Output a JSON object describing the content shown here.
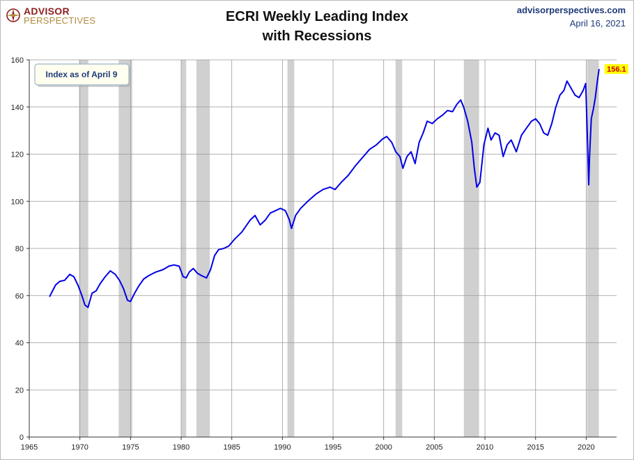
{
  "header": {
    "logo_line1": "ADVISOR",
    "logo_line2": "PERSPECTIVES",
    "title_line1": "ECRI Weekly Leading Index",
    "title_line2": "with Recessions",
    "site": "advisorperspectives.com",
    "date": "April 16, 2021"
  },
  "chart_data": {
    "type": "line",
    "title": "ECRI Weekly Leading Index with Recessions",
    "xlabel": "",
    "ylabel": "",
    "xlim": [
      1965,
      2023
    ],
    "ylim": [
      0,
      160
    ],
    "x_ticks": [
      1965,
      1970,
      1975,
      1980,
      1985,
      1990,
      1995,
      2000,
      2005,
      2010,
      2015,
      2020
    ],
    "y_ticks": [
      0,
      20,
      40,
      60,
      80,
      100,
      120,
      140,
      160
    ],
    "grid": true,
    "annotation_box": "Index as of April 9",
    "last_value_label": "156.1",
    "series_color": "#0000e6",
    "recession_color": "#d0d0d0",
    "recessions": [
      [
        1969.92,
        1970.83
      ],
      [
        1973.83,
        1975.17
      ],
      [
        1980.0,
        1980.5
      ],
      [
        1981.5,
        1982.83
      ],
      [
        1990.5,
        1991.17
      ],
      [
        2001.17,
        2001.83
      ],
      [
        2007.92,
        2009.42
      ],
      [
        2020.08,
        2021.25
      ]
    ],
    "series": [
      {
        "x": [
          1967.0,
          1967.3,
          1967.6,
          1968.0,
          1968.5,
          1969.0,
          1969.4,
          1969.8,
          1970.2,
          1970.5,
          1970.8,
          1971.2,
          1971.6,
          1972.0,
          1972.5,
          1973.0,
          1973.5,
          1973.9,
          1974.3,
          1974.7,
          1975.0,
          1975.4,
          1975.8,
          1976.3,
          1976.8,
          1977.5,
          1978.2,
          1978.8,
          1979.3,
          1979.8,
          1980.2,
          1980.5,
          1980.8,
          1981.2,
          1981.6,
          1982.0,
          1982.5,
          1982.9,
          1983.3,
          1983.7,
          1984.2,
          1984.7,
          1985.3,
          1986.0,
          1986.8,
          1987.3,
          1987.8,
          1988.3,
          1988.8,
          1989.3,
          1989.8,
          1990.3,
          1990.7,
          1990.9,
          1991.3,
          1991.8,
          1992.5,
          1993.3,
          1994.0,
          1994.7,
          1995.2,
          1995.8,
          1996.5,
          1997.2,
          1998.0,
          1998.6,
          1999.3,
          1999.9,
          2000.3,
          2000.8,
          2001.2,
          2001.6,
          2001.9,
          2002.3,
          2002.7,
          2003.1,
          2003.5,
          2003.9,
          2004.3,
          2004.8,
          2005.3,
          2005.8,
          2006.3,
          2006.8,
          2007.2,
          2007.6,
          2007.9,
          2008.3,
          2008.7,
          2008.95,
          2009.2,
          2009.5,
          2009.9,
          2010.3,
          2010.6,
          2011.0,
          2011.4,
          2011.8,
          2012.2,
          2012.6,
          2013.1,
          2013.6,
          2014.1,
          2014.6,
          2015.0,
          2015.4,
          2015.8,
          2016.2,
          2016.6,
          2017.0,
          2017.4,
          2017.8,
          2018.1,
          2018.5,
          2018.9,
          2019.3,
          2019.7,
          2019.95,
          2020.1,
          2020.25,
          2020.33,
          2020.5,
          2020.7,
          2020.9,
          2021.1,
          2021.27
        ],
        "values": [
          59.5,
          62,
          64.5,
          66,
          66.5,
          69,
          68,
          64.5,
          60,
          56,
          55,
          61,
          62,
          65,
          68,
          70.5,
          69,
          66.5,
          63,
          58,
          57.5,
          61,
          64,
          67,
          68.5,
          70,
          71,
          72.5,
          73,
          72.5,
          68,
          67.5,
          70,
          71.5,
          69.5,
          68.5,
          67.5,
          71,
          77,
          79.5,
          80,
          81,
          84,
          87,
          92,
          94,
          90,
          92,
          95,
          96,
          97,
          96,
          92,
          88.5,
          94,
          97,
          100,
          103,
          105,
          106,
          105,
          108,
          111,
          115,
          119,
          122,
          124,
          126.5,
          127.5,
          125,
          121,
          119,
          114,
          119,
          121,
          116,
          125,
          129,
          134,
          133,
          135,
          136.5,
          138.5,
          138,
          141,
          143,
          140,
          134,
          125,
          114,
          106,
          108,
          124,
          131,
          126,
          129,
          128,
          119,
          124,
          126,
          121,
          128,
          131,
          134,
          135,
          133,
          129,
          128,
          133,
          140,
          145,
          147,
          151,
          148,
          145,
          144,
          147,
          150,
          130,
          107,
          119,
          135,
          139,
          144,
          151,
          156.1
        ]
      }
    ]
  }
}
